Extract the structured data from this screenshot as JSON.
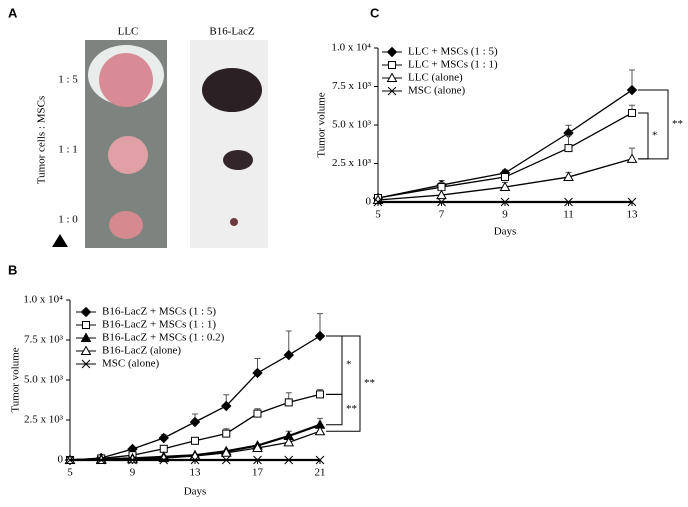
{
  "panel_a": {
    "panel": "A",
    "columns": [
      "LLC",
      "B16-LacZ"
    ],
    "row_title": "Tumor cells : MSCs",
    "rows": [
      "1 : 5",
      "1 : 1",
      "1 : 0"
    ]
  },
  "chart_data": [
    {
      "type": "line",
      "panel": "C",
      "xlabel": "Days",
      "ylabel": "Tumor volume",
      "x": [
        5,
        7,
        9,
        11,
        13
      ],
      "xlim": [
        5,
        13
      ],
      "xticks": [
        5,
        7,
        9,
        11,
        13
      ],
      "ylim": [
        0,
        10000
      ],
      "yticks": [
        0,
        {
          "value": 2500,
          "label": "2.5 x 10³"
        },
        {
          "value": 5000,
          "label": "5.0 x 10³"
        },
        {
          "value": 7500,
          "label": "7.5 x 10³"
        },
        {
          "value": 10000,
          "label": "1.0 x 10⁴"
        }
      ],
      "series": [
        {
          "name": "LLC + MSCs (1 : 5)",
          "color": "#000000",
          "marker": "diamond",
          "filled": true,
          "values": [
            260,
            1100,
            1880,
            4480,
            7270
          ],
          "errors": [
            null,
            300,
            200,
            500,
            1300
          ]
        },
        {
          "name": "LLC + MSCs (1 : 1)",
          "color": "#000000",
          "marker": "square",
          "filled": false,
          "values": [
            260,
            970,
            1620,
            3500,
            5780
          ],
          "errors": [
            null,
            300,
            200,
            800,
            500
          ]
        },
        {
          "name": "LLC (alone)",
          "color": "#000000",
          "marker": "triangle",
          "filled": false,
          "values": [
            130,
            450,
            970,
            1620,
            2800
          ],
          "errors": [
            null,
            300,
            300,
            300,
            700
          ]
        },
        {
          "name": "MSC (alone)",
          "color": "#000000",
          "marker": "cross",
          "filled": false,
          "values": [
            0,
            0,
            0,
            0,
            0
          ],
          "errors": [
            null,
            null,
            null,
            null,
            null
          ]
        }
      ],
      "annotations": [
        {
          "text": "*"
        },
        {
          "text": "**"
        }
      ]
    },
    {
      "type": "line",
      "panel": "B",
      "xlabel": "Days",
      "ylabel": "Tumor volume",
      "x": [
        5,
        7,
        9,
        11,
        13,
        15,
        17,
        19,
        21
      ],
      "xlim": [
        5,
        21
      ],
      "xticks": [
        5,
        9,
        13,
        17,
        21
      ],
      "ylim": [
        0,
        10000
      ],
      "yticks": [
        0,
        {
          "value": 2500,
          "label": "2.5 x 10³"
        },
        {
          "value": 5000,
          "label": "5.0 x 10³"
        },
        {
          "value": 7500,
          "label": "7.5 x 10³"
        },
        {
          "value": 10000,
          "label": "1.0 x 10⁴"
        }
      ],
      "series": [
        {
          "name": "B16-LacZ + MSCs (1 : 5)",
          "color": "#000000",
          "marker": "diamond",
          "filled": true,
          "values": [
            0,
            125,
            690,
            1375,
            2375,
            3375,
            5440,
            6560,
            7750
          ],
          "errors": [
            null,
            null,
            100,
            200,
            500,
            700,
            900,
            1500,
            1400
          ]
        },
        {
          "name": "B16-LacZ + MSCs (1 : 1)",
          "color": "#000000",
          "marker": "square",
          "filled": false,
          "values": [
            0,
            100,
            300,
            700,
            1200,
            1650,
            2900,
            3600,
            4100
          ],
          "errors": [
            null,
            null,
            null,
            null,
            null,
            300,
            300,
            600,
            300
          ]
        },
        {
          "name": "B16-LacZ + MSCs (1 : 0.2)",
          "color": "#000000",
          "marker": "triangle",
          "filled": true,
          "values": [
            0,
            50,
            100,
            200,
            300,
            550,
            900,
            1500,
            2200
          ],
          "errors": [
            null,
            null,
            null,
            null,
            null,
            null,
            null,
            300,
            400
          ]
        },
        {
          "name": "B16-LacZ (alone)",
          "color": "#000000",
          "marker": "triangle",
          "filled": false,
          "values": [
            0,
            0,
            50,
            120,
            250,
            450,
            750,
            1100,
            1800
          ],
          "errors": [
            null,
            null,
            null,
            null,
            null,
            null,
            null,
            null,
            null
          ]
        },
        {
          "name": "MSC (alone)",
          "color": "#000000",
          "marker": "cross",
          "filled": false,
          "values": [
            0,
            0,
            0,
            0,
            0,
            0,
            0,
            0,
            0
          ],
          "errors": [
            null,
            null,
            null,
            null,
            null,
            null,
            null,
            null,
            null
          ]
        }
      ],
      "annotations": [
        {
          "text": "*"
        },
        {
          "text": "**"
        },
        {
          "text": "**"
        }
      ]
    }
  ]
}
